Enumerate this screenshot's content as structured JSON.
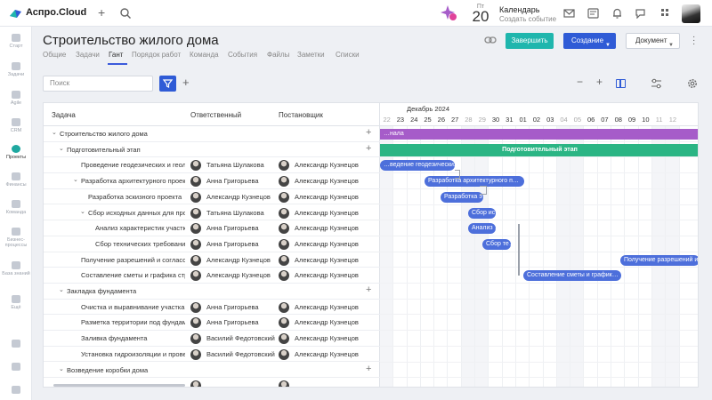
{
  "app": {
    "name": "Аспро.Cloud"
  },
  "calendar": {
    "weekday": "Пт",
    "day": "20",
    "title": "Календарь",
    "subtitle": "Создать событие"
  },
  "leftnav": [
    {
      "label": "Старт"
    },
    {
      "label": "Задачи"
    },
    {
      "label": "Agile"
    },
    {
      "label": "CRM"
    },
    {
      "label": "Проекты",
      "active": true
    },
    {
      "label": "Финансы"
    },
    {
      "label": "Команда"
    },
    {
      "label": "Бизнес-процессы"
    },
    {
      "label": "База знаний"
    },
    {
      "label": "Ещё"
    }
  ],
  "project": {
    "title": "Строительство жилого дома"
  },
  "tabs": [
    "Общие",
    "Задачи",
    "Гант",
    "Порядок работ",
    "Команда",
    "События",
    "Файлы",
    "Заметки",
    "Списки"
  ],
  "active_tab": "Гант",
  "actions": {
    "finish": "Завершить",
    "create": "Создание",
    "document": "Документ"
  },
  "toolbar": {
    "search_placeholder": "Поиск"
  },
  "table": {
    "headers": {
      "task": "Задача",
      "responsible": "Ответственный",
      "assigner": "Постановщик"
    },
    "rows": [
      {
        "task": "Строительство жилого дома",
        "level": 0,
        "toggle": "⌄",
        "plus": true
      },
      {
        "task": "Подготовительный этап",
        "level": 1,
        "toggle": "⌄",
        "plus": true
      },
      {
        "task": "Проведение геодезических и геоло…",
        "level": 2,
        "responsible": "Татьяна Шулакова",
        "assigner": "Александр Кузнецов"
      },
      {
        "task": "Разработка архитектурного проект…",
        "level": 2,
        "toggle": "⌄",
        "responsible": "Анна Григорьева",
        "assigner": "Александр Кузнецов"
      },
      {
        "task": "Разработка эскизного проекта",
        "level": 3,
        "responsible": "Александр Кузнецов",
        "assigner": "Александр Кузнецов"
      },
      {
        "task": "Сбор исходных данных для прое…",
        "level": 3,
        "toggle": "⌄",
        "responsible": "Татьяна Шулакова",
        "assigner": "Александр Кузнецов"
      },
      {
        "task": "Анализ характеристик участка",
        "level": 4,
        "responsible": "Анна Григорьева",
        "assigner": "Александр Кузнецов"
      },
      {
        "task": "Сбор технических требований…",
        "level": 4,
        "responsible": "Анна Григорьева",
        "assigner": "Александр Кузнецов"
      },
      {
        "task": "Получение разрешений и согласов…",
        "level": 2,
        "responsible": "Александр Кузнецов",
        "assigner": "Александр Кузнецов"
      },
      {
        "task": "Составление сметы и графика стро…",
        "level": 2,
        "responsible": "Александр Кузнецов",
        "assigner": "Александр Кузнецов"
      },
      {
        "task": "Закладка фундамента",
        "level": 1,
        "toggle": "⌄",
        "plus": true
      },
      {
        "task": "Очистка и выравнивание участка",
        "level": 2,
        "responsible": "Анна Григорьева",
        "assigner": "Александр Кузнецов"
      },
      {
        "task": "Разметка территории под фундамент",
        "level": 2,
        "responsible": "Анна Григорьева",
        "assigner": "Александр Кузнецов"
      },
      {
        "task": "Заливка фундамента",
        "level": 2,
        "responsible": "Василий Федотовский",
        "assigner": "Александр Кузнецов"
      },
      {
        "task": "Установка гидроизоляции и провер…",
        "level": 2,
        "responsible": "Василий Федотовский",
        "assigner": "Александр Кузнецов"
      },
      {
        "task": "Возведение коробки дома",
        "level": 1,
        "toggle": "⌄",
        "plus": true
      },
      {
        "task": "",
        "level": 2,
        "responsible": "",
        "assigner": ""
      }
    ]
  },
  "gantt": {
    "month": "Декабрь 2024",
    "days": [
      "22",
      "23",
      "24",
      "25",
      "26",
      "27",
      "28",
      "29",
      "30",
      "31",
      "01",
      "02",
      "03",
      "04",
      "05",
      "06",
      "07",
      "08",
      "09",
      "10",
      "11",
      "12"
    ],
    "weekend_indices": [
      0,
      6,
      7,
      13,
      14,
      20,
      21
    ],
    "bars": [
      {
        "row": 0,
        "label": "…нала",
        "color": "purple"
      },
      {
        "row": 1,
        "label": "Подготовительный этап",
        "color": "green"
      },
      {
        "row": 2,
        "label": "…ведение геодезических …",
        "color": "blue"
      },
      {
        "row": 3,
        "label": "Разработка архитектурного п…",
        "color": "blue"
      },
      {
        "row": 4,
        "label": "Разработка э…",
        "color": "blue"
      },
      {
        "row": 5,
        "label": "Сбор ис…",
        "color": "blue"
      },
      {
        "row": 6,
        "label": "Анализ …",
        "color": "blue"
      },
      {
        "row": 7,
        "label": "Сбор те…",
        "color": "blue"
      },
      {
        "row": 8,
        "label": "Получение разрешений и…",
        "color": "blue"
      },
      {
        "row": 9,
        "label": "Составление сметы и график…",
        "color": "blue"
      }
    ]
  }
}
